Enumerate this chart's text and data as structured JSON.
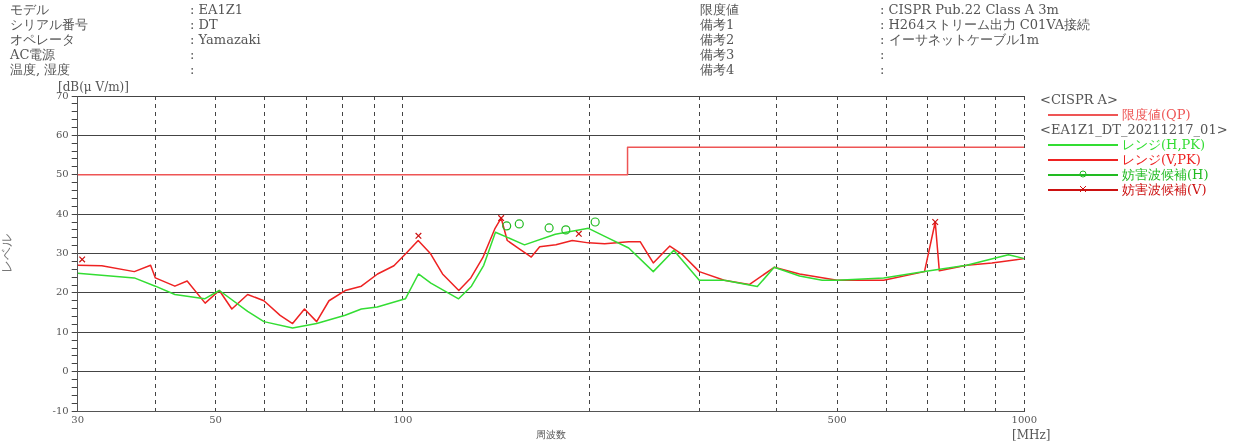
{
  "chart_data": {
    "type": "line",
    "xlabel": "周波数",
    "ylabel": "レベル",
    "legend_title": "<CISPR A>",
    "log": "x",
    "grid": true,
    "legend": "right",
    "xlim": [
      30,
      1000
    ],
    "ylim": [
      -10,
      70
    ],
    "xticks": [
      30,
      {
        "value": 40,
        "label": null
      },
      50,
      {
        "value": 60,
        "label": null
      },
      {
        "value": 70,
        "label": null
      },
      {
        "value": 80,
        "label": null
      },
      {
        "value": 90,
        "label": null
      },
      100,
      {
        "value": 200,
        "label": null
      },
      {
        "value": 300,
        "label": null
      },
      {
        "value": 400,
        "label": null
      },
      500,
      {
        "value": 600,
        "label": null
      },
      {
        "value": 700,
        "label": null
      },
      {
        "value": 800,
        "label": null
      },
      {
        "value": 900,
        "label": null
      },
      1000
    ],
    "yticks": [
      -10,
      {
        "value": -8,
        "label": null
      },
      {
        "value": -6,
        "label": null
      },
      {
        "value": -4,
        "label": null
      },
      {
        "value": -2,
        "label": null
      },
      0,
      {
        "value": 2,
        "label": null
      },
      {
        "value": 4,
        "label": null
      },
      {
        "value": 6,
        "label": null
      },
      {
        "value": 8,
        "label": null
      },
      10,
      {
        "value": 12,
        "label": null
      },
      {
        "value": 14,
        "label": null
      },
      {
        "value": 16,
        "label": null
      },
      {
        "value": 18,
        "label": null
      },
      20,
      {
        "value": 22,
        "label": null
      },
      {
        "value": 24,
        "label": null
      },
      {
        "value": 26,
        "label": null
      },
      {
        "value": 28,
        "label": null
      },
      30,
      {
        "value": 32,
        "label": null
      },
      {
        "value": 34,
        "label": null
      },
      {
        "value": 36,
        "label": null
      },
      {
        "value": 38,
        "label": null
      },
      40,
      {
        "value": 42,
        "label": null
      },
      {
        "value": 44,
        "label": null
      },
      {
        "value": 46,
        "label": null
      },
      {
        "value": 48,
        "label": null
      },
      50,
      {
        "value": 52,
        "label": null
      },
      {
        "value": 54,
        "label": null
      },
      {
        "value": 56,
        "label": null
      },
      {
        "value": 58,
        "label": null
      },
      60,
      {
        "value": 62,
        "label": null
      },
      {
        "value": 64,
        "label": null
      },
      {
        "value": 66,
        "label": null
      },
      {
        "value": 68,
        "label": null
      },
      70
    ],
    "series": [
      {
        "name": "限度値(QP)",
        "type": "step",
        "color": "#ee5555",
        "marker": "none",
        "x": [
          30,
          230,
          1000
        ],
        "values": [
          50,
          57,
          57
        ]
      },
      {
        "name": "レンジ(H,PK)",
        "color": "#33dd33",
        "marker": "none",
        "x": [
          30,
          37,
          40,
          43,
          48,
          50.7,
          56.3,
          59.8,
          66.5,
          72.7,
          80.8,
          85.8,
          91,
          101,
          106,
          111,
          123,
          129,
          135,
          141,
          157,
          176,
          199,
          213,
          231,
          253,
          273,
          300,
          329,
          372,
          396,
          435,
          473,
          500,
          594,
          691,
          808,
          943,
          1000
        ],
        "values": [
          25,
          23.8,
          21.7,
          19.6,
          18.5,
          20.6,
          15.3,
          12.7,
          11.1,
          12.2,
          14.3,
          15.9,
          16.4,
          18.5,
          24.8,
          22.5,
          18.5,
          21.7,
          27,
          35.4,
          32.2,
          34.9,
          36.4,
          34.1,
          31.4,
          25.4,
          30.8,
          23.2,
          23.2,
          21.6,
          26.5,
          24.3,
          23.2,
          23.2,
          23.8,
          25.4,
          27,
          29.7,
          28.7
        ]
      },
      {
        "name": "レンジ(V,PK)",
        "color": "#ee2222",
        "marker": "none",
        "x": [
          30,
          32.8,
          37,
          39.3,
          40,
          43,
          45,
          48.1,
          50.7,
          53.1,
          56.3,
          59.8,
          63.5,
          66.5,
          69.5,
          72.7,
          76.1,
          80.8,
          85.8,
          91.1,
          96.8,
          101.2,
          105.9,
          110.8,
          115.9,
          123.1,
          128.7,
          134.6,
          140.8,
          144,
          147.3,
          154,
          161,
          166.1,
          176.4,
          187.4,
          199,
          211.3,
          231,
          241,
          253,
          269,
          282,
          300,
          329,
          361,
          396,
          435,
          500,
          594,
          691,
          719,
          730,
          808,
          887,
          1000
        ],
        "values": [
          27,
          26.9,
          25.4,
          27,
          23.8,
          21.7,
          23,
          17.4,
          20.6,
          15.9,
          19.6,
          18,
          14.3,
          12.2,
          15.9,
          12.7,
          18,
          20.6,
          21.7,
          24.8,
          26.9,
          30,
          33.3,
          30,
          24.8,
          20.6,
          23.8,
          29,
          36.4,
          39,
          33.3,
          31.2,
          29.1,
          31.7,
          32.2,
          33.3,
          32.7,
          32.5,
          33,
          33,
          27.6,
          31.9,
          29.7,
          25.4,
          23.2,
          22.1,
          26.5,
          24.8,
          23.2,
          23.2,
          25.4,
          38,
          25.6,
          27,
          27.6,
          28.7
        ]
      },
      {
        "name": "妨害波候補(H)",
        "type": "scatter",
        "color": "#22bb22",
        "marker": "circle",
        "x": [
          147,
          154,
          172,
          183,
          204
        ],
        "values": [
          37,
          37.5,
          36.5,
          36,
          38
        ]
      },
      {
        "name": "妨害波候補(V)",
        "type": "scatter",
        "color": "#cc1111",
        "marker": "cross",
        "x": [
          30.5,
          106,
          144,
          192,
          719
        ],
        "values": [
          28.5,
          34.5,
          39,
          35,
          38
        ]
      }
    ],
    "annotations": [
      "モデル",
      ": EA1Z1",
      "シリアル番号",
      ": DT",
      "オペレータ",
      ": Yamazaki",
      "AC電源",
      ":",
      "温度, 湿度",
      ":",
      "限度値",
      ": CISPR Pub.22 Class A 3m",
      "備考1",
      ": H264ストリーム出力 C01VA接続",
      "備考2",
      ": イーサネットケーブル1m",
      "備考3",
      ":",
      "備考4",
      ":",
      "[dB(μ V/m)]",
      "[MHz]",
      "<EA1Z1_DT_20211217_01>"
    ]
  }
}
